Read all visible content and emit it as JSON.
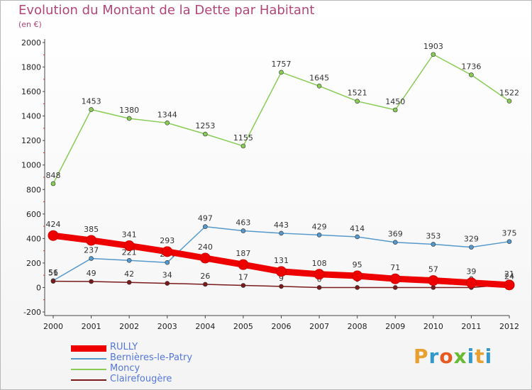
{
  "header": {
    "title": "Evolution du Montant de la Dette par Habitant",
    "subtitle": "(en €)"
  },
  "logo": {
    "text": "Proxiti",
    "letter_colors": [
      "#e8a030",
      "#3399cc",
      "#e85a20",
      "#66bb33",
      "#3399cc",
      "#e8a030",
      "#3399cc"
    ]
  },
  "chart_data": {
    "type": "line",
    "title": "Evolution du Montant de la Dette par Habitant",
    "subtitle": "(en €)",
    "xlabel": "",
    "ylabel": "",
    "x": [
      2000,
      2001,
      2002,
      2003,
      2004,
      2005,
      2006,
      2007,
      2008,
      2009,
      2010,
      2011,
      2012
    ],
    "ylim": [
      -200,
      2000
    ],
    "yticks": [
      -200,
      0,
      200,
      400,
      600,
      800,
      1000,
      1200,
      1400,
      1600,
      1800,
      2000
    ],
    "grid": false,
    "legend_position": "bottom-left",
    "series": [
      {
        "name": "Moncy",
        "color": "#88cc55",
        "values": [
          848,
          1453,
          1380,
          1344,
          1253,
          1155,
          1757,
          1645,
          1521,
          1450,
          1903,
          1736,
          1522
        ],
        "labels": [
          "848",
          "1453",
          "1380",
          "1344",
          "1253",
          "1155",
          "1757",
          "1645",
          "1521",
          "1450",
          "1903",
          "1736",
          "1522"
        ]
      },
      {
        "name": "Bernières-le-Patry",
        "color": "#5599cc",
        "values": [
          56,
          237,
          221,
          204,
          497,
          463,
          443,
          429,
          414,
          369,
          353,
          329,
          375
        ],
        "labels": [
          "56",
          "237",
          "221",
          "204",
          "497",
          "463",
          "443",
          "429",
          "414",
          "369",
          "353",
          "329",
          "375"
        ]
      },
      {
        "name": "Clairefougère",
        "color": "#7a1a1a",
        "values": [
          51,
          49,
          42,
          34,
          26,
          17,
          9,
          0,
          0,
          0,
          0,
          0,
          24
        ],
        "labels": [
          "51",
          "49",
          "42",
          "34",
          "26",
          "17",
          "9",
          "0",
          "0",
          "0",
          "0",
          "0",
          "24"
        ]
      },
      {
        "name": "RULLY",
        "color": "#ee0000",
        "values": [
          424,
          385,
          341,
          293,
          240,
          187,
          131,
          108,
          95,
          71,
          57,
          39,
          21
        ],
        "labels": [
          "424",
          "385",
          "341",
          "293",
          "240",
          "187",
          "131",
          "108",
          "95",
          "71",
          "57",
          "39",
          "21"
        ]
      }
    ],
    "legend": [
      {
        "name": "RULLY",
        "color": "#ee0000",
        "thickness": 9
      },
      {
        "name": "Bernières-le-Patry",
        "color": "#5599cc",
        "thickness": 2
      },
      {
        "name": "Moncy",
        "color": "#88cc55",
        "thickness": 2
      },
      {
        "name": "Clairefougère",
        "color": "#7a1a1a",
        "thickness": 2
      }
    ]
  }
}
